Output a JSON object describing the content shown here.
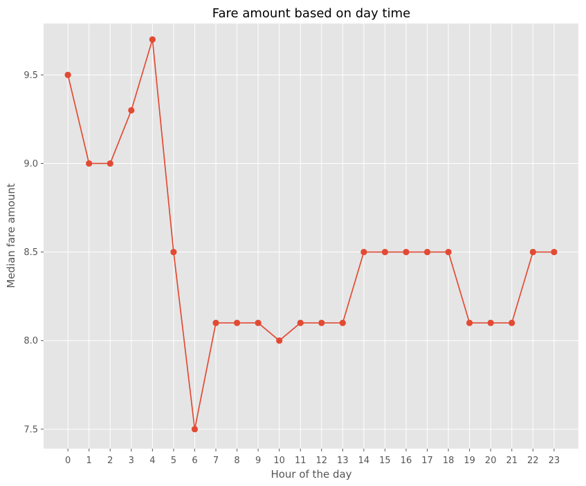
{
  "chart_data": {
    "type": "line",
    "title": "Fare amount based on day time",
    "xlabel": "Hour of the day",
    "ylabel": "Median fare amount",
    "x": [
      0,
      1,
      2,
      3,
      4,
      5,
      6,
      7,
      8,
      9,
      10,
      11,
      12,
      13,
      14,
      15,
      16,
      17,
      18,
      19,
      20,
      21,
      22,
      23
    ],
    "series": [
      {
        "values": [
          9.5,
          9.0,
          9.0,
          9.3,
          9.7,
          8.5,
          7.5,
          8.1,
          8.1,
          8.1,
          8.0,
          8.1,
          8.1,
          8.1,
          8.5,
          8.5,
          8.5,
          8.5,
          8.5,
          8.1,
          8.1,
          8.1,
          8.5,
          8.5
        ],
        "color": "#E24A33"
      }
    ],
    "ylim": [
      7.39,
      9.79
    ],
    "xlim": [
      -1.15,
      24.15
    ],
    "y_ticks": [
      7.5,
      8.0,
      8.5,
      9.0,
      9.5
    ],
    "y_tick_labels": [
      "7.5",
      "8.0",
      "8.5",
      "9.0",
      "9.5"
    ],
    "x_tick_labels": [
      "0",
      "1",
      "2",
      "3",
      "4",
      "5",
      "6",
      "7",
      "8",
      "9",
      "10",
      "11",
      "12",
      "13",
      "14",
      "15",
      "16",
      "17",
      "18",
      "19",
      "20",
      "21",
      "22",
      "23"
    ],
    "grid": true,
    "background": "#E5E5E5",
    "grid_color": "#FFFFFF",
    "marker": "circle"
  }
}
